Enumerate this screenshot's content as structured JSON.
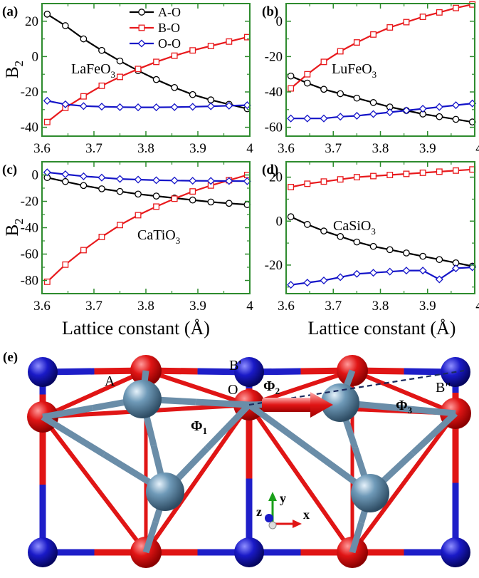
{
  "colors": {
    "ao": "#000000",
    "bo": "#e8191c",
    "oo": "#1414c8",
    "frame": "#2e8b2e",
    "a_atom": "#6f9ab8",
    "b_atom": "#1a1ac8",
    "o_atom": "#e01515",
    "bond_blue": "#1e1ec8",
    "bond_red": "#e01515",
    "bond_grey": "#6a8da8"
  },
  "chart_data": [
    {
      "type": "line",
      "panel": "(a)",
      "label": "LaFeO",
      "label_sub": "3",
      "xlabel": "",
      "ylabel": "B",
      "ylabel_sub": "2",
      "xlim": [
        3.6,
        4.0
      ],
      "ylim": [
        -45,
        30
      ],
      "xticks": [
        "3.6",
        "3.7",
        "3.8",
        "3.9",
        "4"
      ],
      "yticks": [
        "-40",
        "-20",
        "0",
        "20"
      ],
      "legend": [
        "A-O",
        "B-O",
        "O-O"
      ],
      "legend_position": "top-center",
      "x": [
        3.61,
        3.645,
        3.68,
        3.715,
        3.75,
        3.785,
        3.82,
        3.855,
        3.89,
        3.925,
        3.96,
        3.995
      ],
      "series": [
        {
          "name": "A-O",
          "marker": "circle",
          "values": [
            24,
            17.5,
            10,
            3.5,
            -2.5,
            -8,
            -13,
            -17.5,
            -21.5,
            -24.5,
            -27,
            -29.5
          ]
        },
        {
          "name": "B-O",
          "marker": "square",
          "values": [
            -37,
            -29,
            -22.5,
            -16.5,
            -11.5,
            -7,
            -3,
            0.5,
            3.5,
            6,
            8.5,
            11
          ]
        },
        {
          "name": "O-O",
          "marker": "diamond",
          "values": [
            -25,
            -27,
            -28,
            -28.3,
            -28.6,
            -28.7,
            -28.7,
            -28.6,
            -28.4,
            -28.1,
            -27.8,
            -27.5
          ]
        }
      ]
    },
    {
      "type": "line",
      "panel": "(b)",
      "label": "LuFeO",
      "label_sub": "3",
      "xlabel": "",
      "ylabel": "",
      "xlim": [
        3.6,
        4.0
      ],
      "ylim": [
        -65,
        10
      ],
      "xticks": [
        "3.6",
        "3.7",
        "3.8",
        "3.9",
        "4"
      ],
      "yticks": [
        "-60",
        "-40",
        "-20",
        "0"
      ],
      "x": [
        3.61,
        3.645,
        3.68,
        3.715,
        3.75,
        3.785,
        3.82,
        3.855,
        3.89,
        3.925,
        3.96,
        3.995
      ],
      "series": [
        {
          "name": "A-O",
          "marker": "circle",
          "values": [
            -31,
            -35,
            -38.5,
            -41,
            -43.5,
            -46,
            -48.5,
            -50.5,
            -52.5,
            -54,
            -55.5,
            -57
          ]
        },
        {
          "name": "B-O",
          "marker": "square",
          "values": [
            -38,
            -30,
            -23,
            -17,
            -12,
            -7.5,
            -3.5,
            -0.5,
            2.5,
            5,
            7.5,
            9.5
          ]
        },
        {
          "name": "O-O",
          "marker": "diamond",
          "values": [
            -55,
            -55,
            -55,
            -54,
            -53.5,
            -52.5,
            -51.5,
            -50.5,
            -49.5,
            -48.5,
            -47.5,
            -46.5
          ]
        }
      ]
    },
    {
      "type": "line",
      "panel": "(c)",
      "label": "CaTiO",
      "label_sub": "3",
      "xlabel": "Lattice constant (Å)",
      "ylabel": "B",
      "ylabel_sub": "2",
      "xlim": [
        3.6,
        4.0
      ],
      "ylim": [
        -90,
        10
      ],
      "xticks": [
        "3.6",
        "3.7",
        "3.8",
        "3.9",
        "4"
      ],
      "yticks": [
        "-80",
        "-60",
        "-40",
        "-20",
        "0"
      ],
      "x": [
        3.61,
        3.645,
        3.68,
        3.715,
        3.75,
        3.785,
        3.82,
        3.855,
        3.89,
        3.925,
        3.96,
        3.995
      ],
      "series": [
        {
          "name": "A-O",
          "marker": "circle",
          "values": [
            -2,
            -5,
            -8,
            -10.5,
            -12.5,
            -14.5,
            -16,
            -17.5,
            -19,
            -20.5,
            -21.5,
            -22.5
          ]
        },
        {
          "name": "B-O",
          "marker": "square",
          "values": [
            -81,
            -68,
            -57,
            -47,
            -38,
            -30.5,
            -24,
            -18,
            -12.5,
            -8,
            -4,
            0
          ]
        },
        {
          "name": "O-O",
          "marker": "diamond",
          "values": [
            2,
            0.5,
            -1,
            -2,
            -3,
            -3.5,
            -4,
            -4.2,
            -4.4,
            -4.5,
            -4.6,
            -4.7
          ]
        }
      ]
    },
    {
      "type": "line",
      "panel": "(d)",
      "label": "CaSiO",
      "label_sub": "3",
      "xlabel": "Lattice constant (Å)",
      "ylabel": "",
      "xlim": [
        3.6,
        4.0
      ],
      "ylim": [
        -33,
        27
      ],
      "xticks": [
        "3.6",
        "3.7",
        "3.8",
        "3.9",
        "4"
      ],
      "yticks": [
        "-20",
        "0",
        "20"
      ],
      "x": [
        3.61,
        3.645,
        3.68,
        3.715,
        3.75,
        3.785,
        3.82,
        3.855,
        3.89,
        3.925,
        3.96,
        3.995
      ],
      "series": [
        {
          "name": "A-O",
          "marker": "circle",
          "values": [
            2,
            -1.5,
            -4.5,
            -7,
            -9.5,
            -11.5,
            -13,
            -14.5,
            -16,
            -17.5,
            -19,
            -20.5
          ]
        },
        {
          "name": "B-O",
          "marker": "square",
          "values": [
            15.5,
            17,
            18,
            19,
            20,
            20.5,
            21,
            21.5,
            22,
            22.5,
            23,
            23.5
          ]
        },
        {
          "name": "O-O",
          "marker": "diamond",
          "values": [
            -29,
            -28,
            -27,
            -25.5,
            -24,
            -23.5,
            -23,
            -22.5,
            -22.5,
            -26.5,
            -21.5,
            -21
          ]
        }
      ]
    }
  ],
  "structure": {
    "panel": "(e)",
    "labels": {
      "A": "A",
      "B1": "B'",
      "B2": "B\"",
      "O": "O",
      "phi1": "Φ",
      "phi1_sub": "1",
      "phi2": "Φ",
      "phi2_sub": "2",
      "phi3": "Φ",
      "phi3_sub": "3"
    },
    "axes": {
      "x": "x",
      "y": "y",
      "z": "z"
    }
  }
}
